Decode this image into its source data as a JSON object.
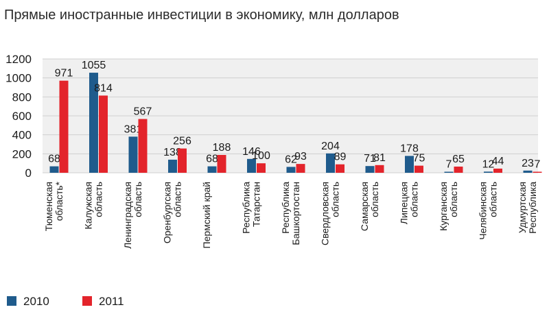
{
  "chart_data": {
    "type": "bar",
    "title": "Прямые иностранные инвестиции в экономику, млн долларов",
    "xlabel": "",
    "ylabel": "",
    "ylim": [
      0,
      1200
    ],
    "yticks": [
      0,
      200,
      400,
      600,
      800,
      1000,
      1200
    ],
    "grid": true,
    "legend_position": "bottom-left",
    "categories": [
      [
        "Тюменская",
        "область*"
      ],
      [
        "Калужская",
        "область"
      ],
      [
        "Ленинградская",
        "область"
      ],
      [
        "Оренбургская",
        "область"
      ],
      [
        "Пермский край"
      ],
      [
        "Республика",
        "Татарстан"
      ],
      [
        "Республика",
        "Башкортостан"
      ],
      [
        "Свердловская",
        "область"
      ],
      [
        "Самарская",
        "область"
      ],
      [
        "Липецкая",
        "область"
      ],
      [
        "Курганская",
        "область"
      ],
      [
        "Челябинская",
        "область"
      ],
      [
        "Удмуртская",
        "Республика"
      ]
    ],
    "series": [
      {
        "name": "2010",
        "color": "#1f5b8c",
        "values": [
          68,
          1055,
          381,
          138,
          68,
          146,
          62,
          204,
          71,
          178,
          7,
          12,
          23
        ]
      },
      {
        "name": "2011",
        "color": "#e3242b",
        "values": [
          971,
          814,
          567,
          256,
          188,
          100,
          93,
          89,
          81,
          75,
          65,
          44,
          7
        ]
      }
    ]
  }
}
